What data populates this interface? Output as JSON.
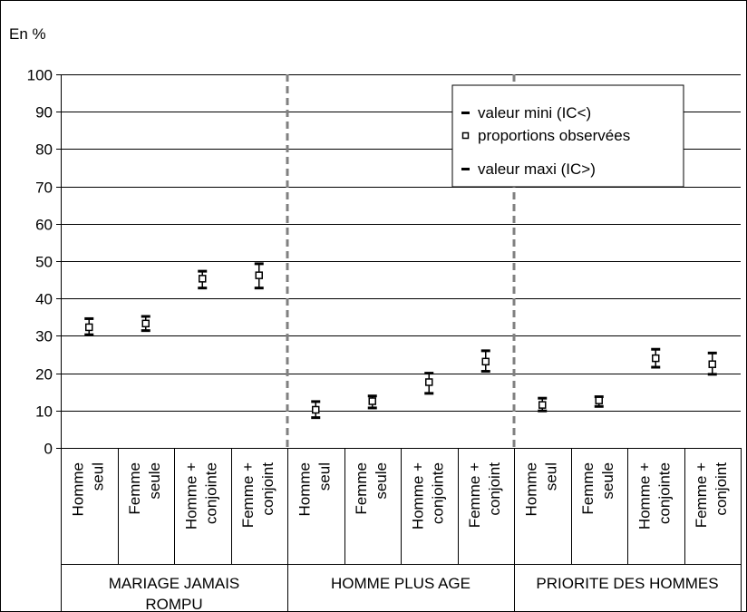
{
  "chart_data": {
    "type": "scatter",
    "unit_label": "En %",
    "ylim": [
      0,
      100
    ],
    "y_ticks": [
      "0",
      "10",
      "20",
      "30",
      "40",
      "50",
      "60",
      "70",
      "80",
      "90",
      "100"
    ],
    "grid": true,
    "legend_position": "top-right",
    "legend": {
      "min": "valeur mini (IC<)",
      "obs": "proportions observées",
      "max": "valeur maxi (IC>)"
    },
    "groups": [
      {
        "label_lines": [
          "MARIAGE JAMAIS",
          "ROMPU"
        ]
      },
      {
        "label_lines": [
          "HOMME PLUS AGE"
        ]
      },
      {
        "label_lines": [
          "PRIORITE DES HOMMES"
        ]
      }
    ],
    "categories": [
      {
        "lines": [
          "Homme",
          "seul"
        ],
        "group": 0
      },
      {
        "lines": [
          "Femme",
          "seule"
        ],
        "group": 0
      },
      {
        "lines": [
          "Homme +",
          "conjointe"
        ],
        "group": 0
      },
      {
        "lines": [
          "Femme +",
          "conjoint"
        ],
        "group": 0
      },
      {
        "lines": [
          "Homme",
          "seul"
        ],
        "group": 1
      },
      {
        "lines": [
          "Femme",
          "seule"
        ],
        "group": 1
      },
      {
        "lines": [
          "Homme +",
          "conjointe"
        ],
        "group": 1
      },
      {
        "lines": [
          "Femme +",
          "conjoint"
        ],
        "group": 1
      },
      {
        "lines": [
          "Homme",
          "seul"
        ],
        "group": 2
      },
      {
        "lines": [
          "Femme",
          "seule"
        ],
        "group": 2
      },
      {
        "lines": [
          "Homme +",
          "conjointe"
        ],
        "group": 2
      },
      {
        "lines": [
          "Femme +",
          "conjoint"
        ],
        "group": 2
      }
    ],
    "series": [
      {
        "name": "valeur mini (IC<)",
        "values": [
          30.3,
          31.4,
          42.8,
          42.8,
          8.1,
          10.7,
          14.6,
          20.5,
          9.9,
          11.1,
          21.6,
          19.7
        ]
      },
      {
        "name": "proportions observées",
        "values": [
          32.3,
          33.3,
          45.3,
          46.2,
          10.2,
          12.5,
          17.6,
          23.1,
          11.5,
          12.7,
          24.0,
          22.4
        ]
      },
      {
        "name": "valeur maxi (IC>)",
        "values": [
          34.6,
          35.2,
          47.3,
          49.3,
          12.4,
          13.9,
          20.0,
          26.0,
          13.3,
          13.7,
          26.4,
          25.4
        ]
      }
    ]
  }
}
